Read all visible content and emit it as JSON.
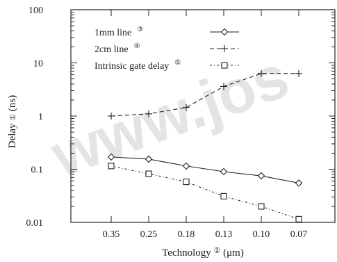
{
  "chart_data": {
    "type": "line",
    "categories": [
      "0.35",
      "0.25",
      "0.18",
      "0.13",
      "0.10",
      "0.07"
    ],
    "xlabel": "Technology",
    "xlabel_marker": "②",
    "xlabel_unit": "(μm)",
    "ylabel": "Delay",
    "ylabel_marker": "①",
    "ylabel_unit": "(ns)",
    "yscale": "log",
    "ylim": [
      0.01,
      100
    ],
    "yticks": [
      "0.01",
      "0.1",
      "1",
      "10",
      "100"
    ],
    "grid": false,
    "legend_position": "top-right",
    "series": [
      {
        "name": "1mm line",
        "marker_label": "③",
        "marker": "diamond",
        "line_style": "solid",
        "values": [
          0.17,
          0.155,
          0.115,
          0.09,
          0.075,
          0.055
        ]
      },
      {
        "name": "2cm line",
        "marker_label": "④",
        "marker": "plus",
        "line_style": "dashed",
        "values": [
          1.0,
          1.1,
          1.45,
          3.6,
          6.3,
          6.3
        ]
      },
      {
        "name": "Intrinsic gate delay",
        "marker_label": "⑤",
        "marker": "square",
        "line_style": "dashdot",
        "values": [
          0.115,
          0.082,
          0.058,
          0.031,
          0.02,
          0.0115
        ]
      }
    ]
  },
  "watermark": "www.jos"
}
